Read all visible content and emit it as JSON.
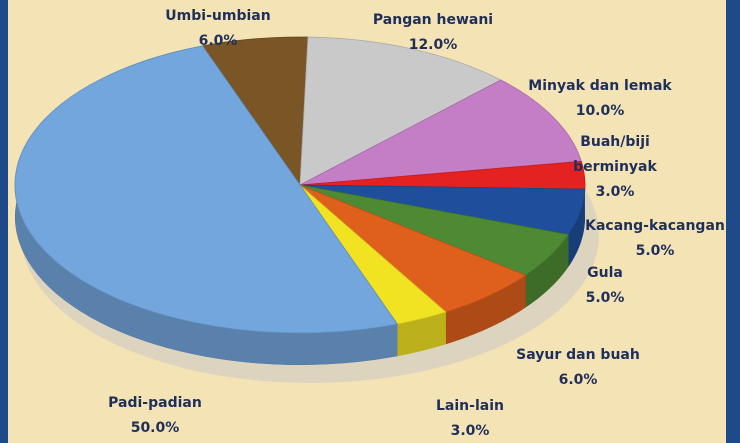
{
  "chart_data": {
    "type": "pie3d",
    "categories": [
      "Umbi-umbian",
      "Pangan hewani",
      "Minyak dan lemak",
      "Buah/biji berminyak",
      "Kacang-kacangan",
      "Gula",
      "Sayur dan buah",
      "Lain-lain",
      "Padi-padian"
    ],
    "values": [
      6,
      12,
      10,
      3,
      5,
      5,
      6,
      3,
      50
    ],
    "value_labels": [
      "6.0%",
      "12.0%",
      "10.0%",
      "3.0%",
      "5.0%",
      "5.0%",
      "6.0%",
      "3.0%",
      "50.0%"
    ],
    "colors": [
      "#7a5526",
      "#c9c9c9",
      "#c47ec6",
      "#e52222",
      "#1f4f9c",
      "#4d8a33",
      "#df5f1c",
      "#f1e321",
      "#72a6dd"
    ]
  }
}
